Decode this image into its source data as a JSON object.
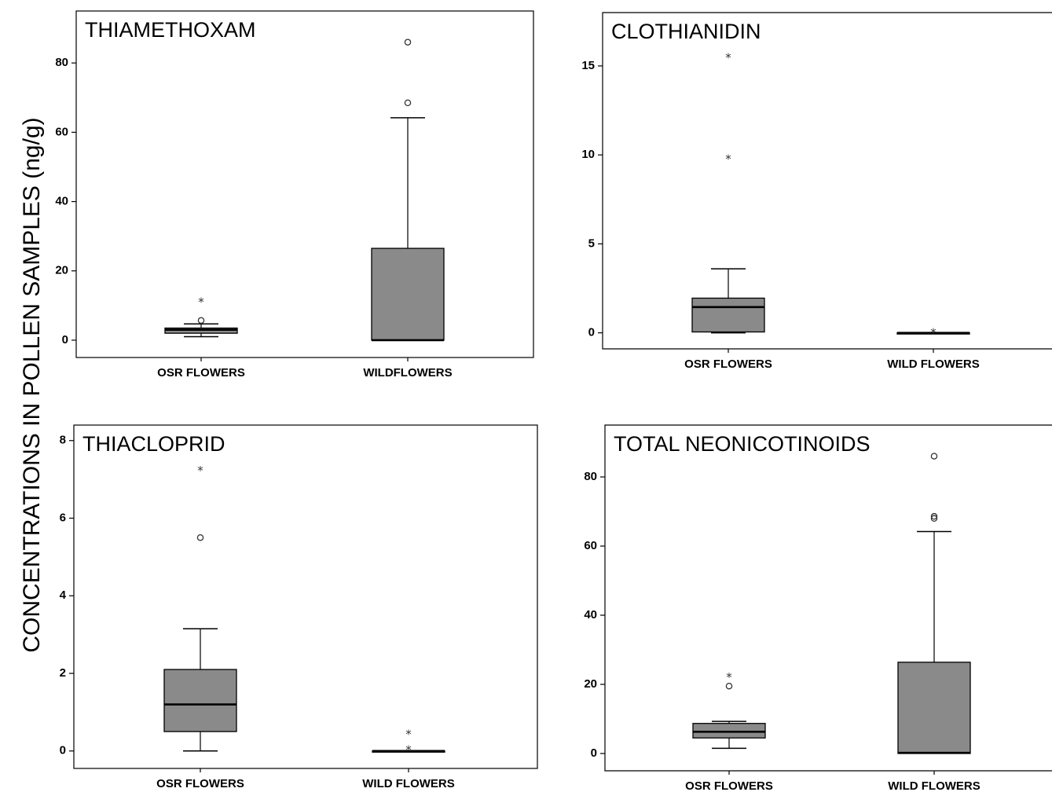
{
  "figure": {
    "y_axis_title": "CONCENTRATIONS IN POLLEN SAMPLES (ng/g)"
  },
  "colors": {
    "box_fill": "#8a8a8a",
    "stroke": "#000000"
  },
  "chart_data": [
    {
      "type": "box",
      "title": "THIAMETHOXAM",
      "categories": [
        "OSR FLOWERS",
        "WILDFLOWERS"
      ],
      "yticks": [
        0,
        20,
        40,
        60,
        80
      ],
      "ylim": [
        -5,
        95
      ],
      "boxes": [
        {
          "category": "OSR FLOWERS",
          "min": 1,
          "q1": 2,
          "median": 3,
          "q3": 3.5,
          "max": 4.7,
          "outliers": [
            5.7
          ],
          "extremes": [
            11.2
          ]
        },
        {
          "category": "WILDFLOWERS",
          "min": 0,
          "q1": 0,
          "median": 0,
          "q3": 26.5,
          "max": 64.2,
          "outliers": [
            68.5,
            86
          ],
          "extremes": []
        }
      ]
    },
    {
      "type": "box",
      "title": "CLOTHIANIDIN",
      "categories": [
        "OSR FLOWERS",
        "WILD FLOWERS"
      ],
      "yticks": [
        0,
        5,
        10,
        15
      ],
      "ylim": [
        -0.9,
        18
      ],
      "boxes": [
        {
          "category": "OSR FLOWERS",
          "min": 0,
          "q1": 0.05,
          "median": 1.45,
          "q3": 1.95,
          "max": 3.6,
          "outliers": [],
          "extremes": [
            9.8,
            15.5
          ]
        },
        {
          "category": "WILD FLOWERS",
          "min": 0,
          "q1": 0,
          "median": 0,
          "q3": 0,
          "max": 0,
          "outliers": [],
          "extremes": [
            0.05
          ]
        }
      ]
    },
    {
      "type": "box",
      "title": "THIACLOPRID",
      "categories": [
        "OSR FLOWERS",
        "WILD FLOWERS"
      ],
      "yticks": [
        0,
        2,
        4,
        6,
        8
      ],
      "ylim": [
        -0.45,
        8.4
      ],
      "boxes": [
        {
          "category": "OSR FLOWERS",
          "min": 0,
          "q1": 0.5,
          "median": 1.2,
          "q3": 2.1,
          "max": 3.15,
          "outliers": [
            5.5
          ],
          "extremes": [
            7.25
          ]
        },
        {
          "category": "WILD FLOWERS",
          "min": 0,
          "q1": 0,
          "median": 0,
          "q3": 0,
          "max": 0,
          "outliers": [],
          "extremes": [
            0.05,
            0.45
          ]
        }
      ]
    },
    {
      "type": "box",
      "title": "TOTAL NEONICOTINOIDS",
      "categories": [
        "OSR FLOWERS",
        "WILD FLOWERS"
      ],
      "yticks": [
        0,
        20,
        40,
        60,
        80
      ],
      "ylim": [
        -5,
        95
      ],
      "boxes": [
        {
          "category": "OSR FLOWERS",
          "min": 1.5,
          "q1": 4.5,
          "median": 6.3,
          "q3": 8.7,
          "max": 9.3,
          "outliers": [
            19.5
          ],
          "extremes": [
            22.3
          ]
        },
        {
          "category": "WILD FLOWERS",
          "min": 0,
          "q1": 0,
          "median": 0.2,
          "q3": 26.4,
          "max": 64.2,
          "outliers": [
            68,
            68.6,
            86
          ],
          "extremes": []
        }
      ]
    }
  ]
}
